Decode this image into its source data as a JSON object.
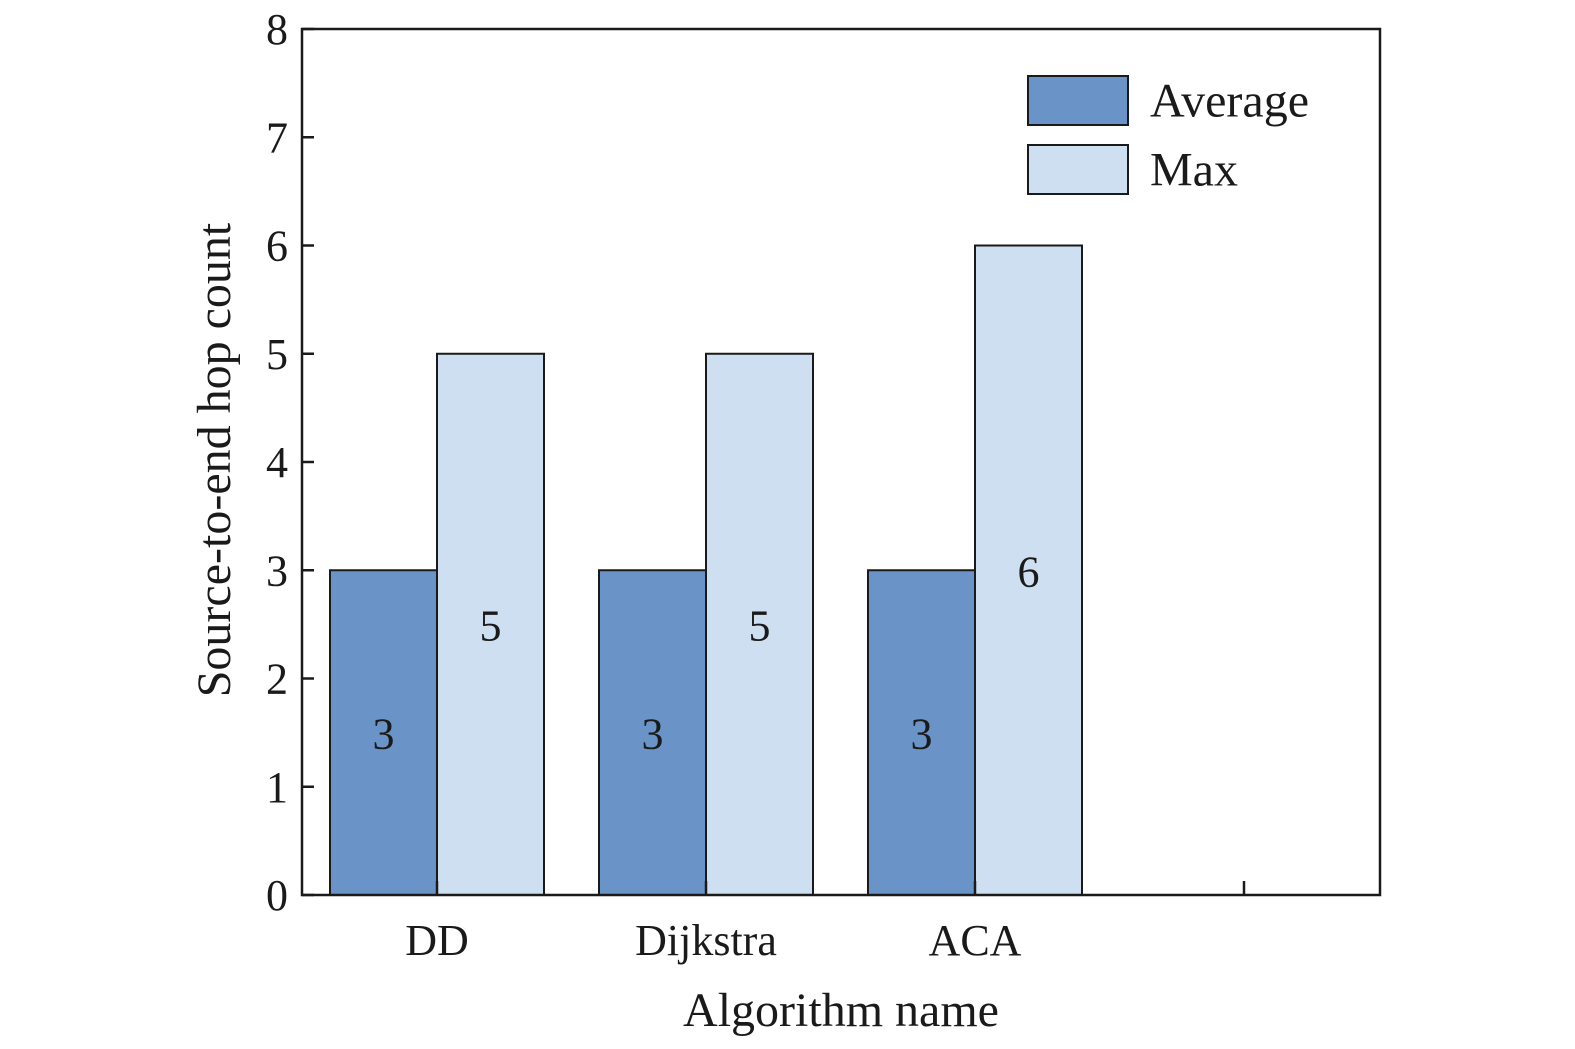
{
  "chart_data": {
    "type": "bar",
    "title": "",
    "xlabel": "Algorithm name",
    "ylabel": "Source-to-end hop count",
    "categories": [
      "DD",
      "Dijkstra",
      "ACA"
    ],
    "series": [
      {
        "name": "Average",
        "values": [
          3,
          3,
          3
        ],
        "color": "#6a94c8"
      },
      {
        "name": "Max",
        "values": [
          5,
          5,
          6
        ],
        "color": "#cddff0"
      }
    ],
    "ylim": [
      0,
      8
    ],
    "yticks": [
      0,
      1,
      2,
      3,
      4,
      5,
      6,
      7,
      8
    ],
    "grid": false,
    "legend_position": "top-right"
  }
}
